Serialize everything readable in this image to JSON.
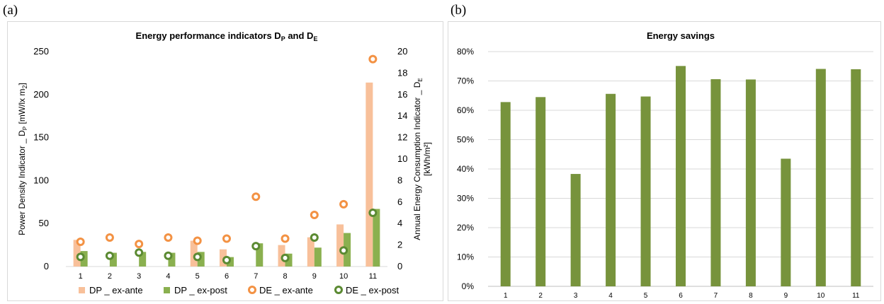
{
  "panels": {
    "a": "(a)",
    "b": "(b)"
  },
  "chart_data": [
    {
      "type": "bar",
      "title": "Energy performance indicators D",
      "title_sub1": "P",
      "title_mid": " and D",
      "title_sub2": "E",
      "categories": [
        "1",
        "2",
        "3",
        "4",
        "5",
        "6",
        "7",
        "8",
        "9",
        "10",
        "11"
      ],
      "ylabel_left": "Power Density Indicator _ D",
      "ylabel_left_sub": "P",
      "ylabel_left_unit": " [mW/lx m",
      "ylabel_left_unit_sub": "2",
      "ylabel_left_end": "]",
      "ylabel_right": "Annual Energy Consumption Indicator _ D",
      "ylabel_right_sub": "E",
      "ylabel_right_unit": "[kWh/m²]",
      "ylim_left": [
        0,
        250
      ],
      "yticks_left": [
        "0",
        "50",
        "100",
        "150",
        "200",
        "250"
      ],
      "ylim_right": [
        0,
        20
      ],
      "yticks_right": [
        "0",
        "2",
        "4",
        "6",
        "8",
        "10",
        "12",
        "14",
        "16",
        "18",
        "20"
      ],
      "series": [
        {
          "name": "DP _ ex-ante",
          "type": "bar",
          "axis": "left",
          "color": "#f8c09a",
          "values": [
            31,
            0,
            0,
            0,
            30,
            20,
            0,
            25,
            34,
            49,
            214
          ]
        },
        {
          "name": "DP _ ex-post",
          "type": "bar",
          "axis": "left",
          "color": "#8ab04f",
          "values": [
            18,
            16,
            17,
            16,
            17,
            11,
            27,
            15,
            22,
            39,
            67
          ]
        },
        {
          "name": "DE _ ex-ante",
          "type": "marker",
          "axis": "right",
          "color": "#f39244",
          "values": [
            2.3,
            2.7,
            2.1,
            2.7,
            2.4,
            2.6,
            6.5,
            2.6,
            4.8,
            5.8,
            19.3
          ]
        },
        {
          "name": "DE _ ex-post",
          "type": "marker",
          "axis": "right",
          "color": "#5b8a32",
          "values": [
            0.9,
            1.0,
            1.3,
            1.0,
            0.9,
            0.6,
            1.9,
            0.8,
            2.7,
            1.5,
            5.0
          ]
        }
      ],
      "legend_position": "bottom"
    },
    {
      "type": "bar",
      "title": "Energy savings",
      "categories": [
        "1",
        "2",
        "3",
        "4",
        "5",
        "6",
        "7",
        "8",
        "9",
        "10",
        "11"
      ],
      "ylim": [
        0,
        80
      ],
      "yticks": [
        "0%",
        "10%",
        "20%",
        "30%",
        "40%",
        "50%",
        "60%",
        "70%",
        "80%"
      ],
      "series": [
        {
          "color": "#77933c",
          "values": [
            62.8,
            64.5,
            38.3,
            65.6,
            64.7,
            75.1,
            70.6,
            70.5,
            43.5,
            74.1,
            74.0
          ]
        }
      ],
      "grid": true
    }
  ]
}
